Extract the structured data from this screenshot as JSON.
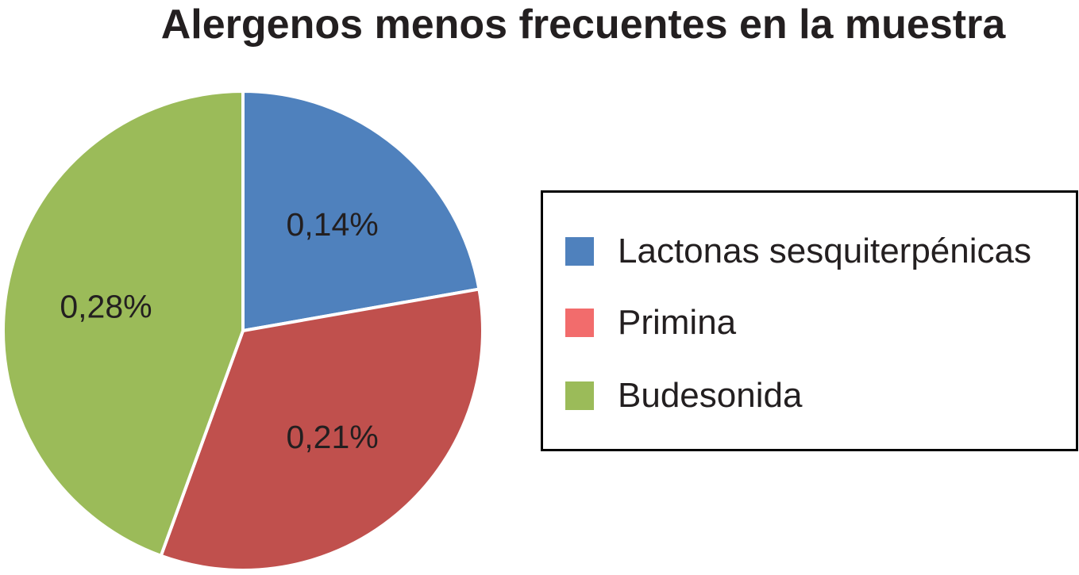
{
  "chart_data": {
    "type": "pie",
    "title": "Alergenos menos frecuentes en la muestra",
    "categories": [
      "Lactonas sesquiterpénicas",
      "Primina",
      "Budesonida"
    ],
    "values": [
      0.14,
      0.21,
      0.28
    ],
    "labels": [
      "0,14%",
      "0,21%",
      "0,28%"
    ],
    "colors": [
      "#4f81bd",
      "#c0504d",
      "#9bbb59"
    ],
    "legend_colors": [
      "#4f81bd",
      "#f26c6c",
      "#9bbb59"
    ],
    "legend_position": "right",
    "start_angle": "top",
    "direction": "clockwise"
  }
}
